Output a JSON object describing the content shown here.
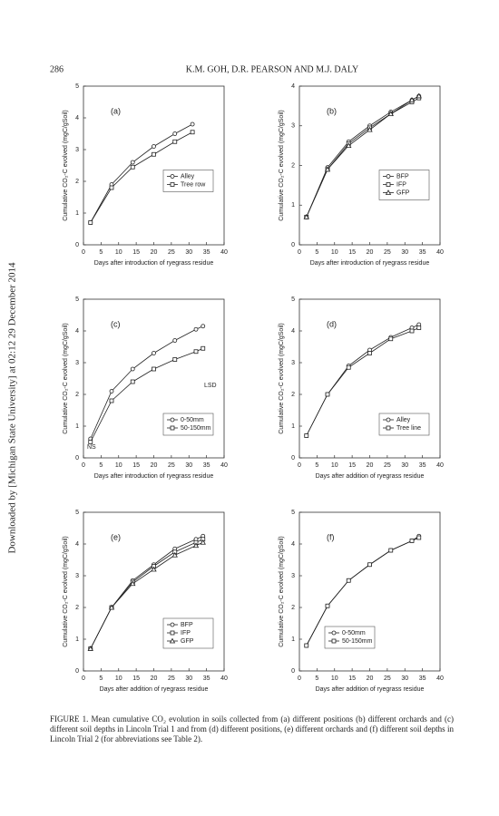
{
  "header": {
    "page_number": "286",
    "authors": "K.M. GOH, D.R. PEARSON AND M.J. DALY"
  },
  "side_note": "Downloaded by [Michigan State University] at 02:12 29 December 2014",
  "chart_data": [
    {
      "type": "line",
      "panel": "(a)",
      "y_label": "Cumulative CO₂-C evolved (mgC/gSoil)",
      "x_label": "Days after introduction of ryegrass residue",
      "x": [
        2,
        8,
        14,
        20,
        26,
        31
      ],
      "xlim": [
        0,
        40
      ],
      "xticks": [
        0,
        5,
        10,
        15,
        20,
        25,
        30,
        35,
        40
      ],
      "ylim": [
        0,
        5
      ],
      "yticks": [
        0,
        1,
        2,
        3,
        4,
        5
      ],
      "legend": "center right",
      "series": [
        {
          "name": "Alley",
          "color": "#222222",
          "values": [
            0.7,
            1.9,
            2.6,
            3.1,
            3.5,
            3.8
          ]
        },
        {
          "name": "Tree row",
          "color": "#222222",
          "values": [
            0.7,
            1.8,
            2.45,
            2.85,
            3.25,
            3.55
          ]
        }
      ]
    },
    {
      "type": "line",
      "panel": "(b)",
      "y_label": "Cumulative CO₂-C evolved (mgC/gSoil)",
      "x_label": "Days after introduction of ryegrass residue",
      "x": [
        2,
        8,
        14,
        20,
        26,
        32,
        34
      ],
      "xlim": [
        0,
        40
      ],
      "xticks": [
        0,
        5,
        10,
        15,
        20,
        25,
        30,
        35,
        40
      ],
      "ylim": [
        0,
        4
      ],
      "yticks": [
        0,
        1,
        2,
        3,
        4
      ],
      "legend": "center right",
      "series": [
        {
          "name": "BFP",
          "color": "#222222",
          "values": [
            0.7,
            1.95,
            2.6,
            3.0,
            3.35,
            3.65,
            3.75
          ]
        },
        {
          "name": "IFP",
          "color": "#222222",
          "values": [
            0.7,
            1.9,
            2.55,
            2.95,
            3.3,
            3.6,
            3.7
          ]
        },
        {
          "name": "GFP",
          "color": "#222222",
          "values": [
            0.7,
            1.9,
            2.5,
            2.9,
            3.3,
            3.65,
            3.75
          ]
        }
      ]
    },
    {
      "type": "line",
      "panel": "(c)",
      "y_label": "Cumulative CO₂-C evolved (mgC/gSoil)",
      "x_label": "Days after introduction of ryegrass residue",
      "x": [
        2,
        8,
        14,
        20,
        26,
        32,
        34
      ],
      "xlim": [
        0,
        40
      ],
      "xticks": [
        0,
        5,
        10,
        15,
        20,
        25,
        30,
        35,
        40
      ],
      "ylim": [
        0,
        5
      ],
      "yticks": [
        0,
        1,
        2,
        3,
        4,
        5
      ],
      "legend": "lower right",
      "annotations": [
        "NS",
        "LSD"
      ],
      "series": [
        {
          "name": "0-50mm",
          "color": "#222222",
          "values": [
            0.6,
            2.1,
            2.8,
            3.3,
            3.7,
            4.05,
            4.15
          ]
        },
        {
          "name": "50-150mm",
          "color": "#222222",
          "values": [
            0.5,
            1.8,
            2.4,
            2.8,
            3.1,
            3.35,
            3.45
          ]
        }
      ]
    },
    {
      "type": "line",
      "panel": "(d)",
      "y_label": "Cumulative CO₂-C evolved (mgC/gSoil)",
      "x_label": "Days after addition of ryegrass residue",
      "x": [
        2,
        8,
        14,
        20,
        26,
        32,
        34
      ],
      "xlim": [
        0,
        40
      ],
      "xticks": [
        0,
        5,
        10,
        15,
        20,
        25,
        30,
        35,
        40
      ],
      "ylim": [
        0,
        5
      ],
      "yticks": [
        0,
        1,
        2,
        3,
        4,
        5
      ],
      "legend": "lower right",
      "series": [
        {
          "name": "Alley",
          "color": "#222222",
          "values": [
            0.7,
            2.0,
            2.9,
            3.4,
            3.8,
            4.1,
            4.2
          ]
        },
        {
          "name": "Tree line",
          "color": "#222222",
          "values": [
            0.7,
            2.0,
            2.85,
            3.3,
            3.75,
            4.0,
            4.1
          ]
        }
      ]
    },
    {
      "type": "line",
      "panel": "(e)",
      "y_label": "Cumulative CO₂-C evolved (mgC/gSoil)",
      "x_label": "Days after addition of ryegrass residue",
      "x": [
        2,
        8,
        14,
        20,
        26,
        32,
        34
      ],
      "xlim": [
        0,
        40
      ],
      "xticks": [
        0,
        5,
        10,
        15,
        20,
        25,
        30,
        35,
        40
      ],
      "ylim": [
        0,
        5
      ],
      "yticks": [
        0,
        1,
        2,
        3,
        4,
        5
      ],
      "legend": "lower right",
      "series": [
        {
          "name": "BFP",
          "color": "#222222",
          "values": [
            0.7,
            2.0,
            2.85,
            3.35,
            3.85,
            4.15,
            4.25
          ]
        },
        {
          "name": "IFP",
          "color": "#222222",
          "values": [
            0.7,
            2.0,
            2.8,
            3.3,
            3.75,
            4.05,
            4.15
          ]
        },
        {
          "name": "GFP",
          "color": "#222222",
          "values": [
            0.7,
            2.0,
            2.75,
            3.2,
            3.65,
            3.95,
            4.05
          ]
        }
      ]
    },
    {
      "type": "line",
      "panel": "(f)",
      "y_label": "Cumulative CO₂-C evolved (mgC/gSoil)",
      "x_label": "Days after addition of ryegrass residue",
      "x": [
        2,
        8,
        14,
        20,
        26,
        32,
        34
      ],
      "xlim": [
        0,
        40
      ],
      "xticks": [
        0,
        5,
        10,
        15,
        20,
        25,
        30,
        35,
        40
      ],
      "ylim": [
        0,
        5
      ],
      "yticks": [
        0,
        1,
        2,
        3,
        4,
        5
      ],
      "legend": "lower left",
      "series": [
        {
          "name": "0-50mm",
          "color": "#222222",
          "values": [
            0.8,
            2.05,
            2.85,
            3.35,
            3.8,
            4.1,
            4.25
          ]
        },
        {
          "name": "50-150mm",
          "color": "#222222",
          "values": [
            0.8,
            2.05,
            2.85,
            3.35,
            3.8,
            4.1,
            4.2
          ]
        }
      ]
    }
  ],
  "caption": "FIGURE 1. Mean cumulative CO₂ evolution in soils collected from (a) different positions (b) different orchards and (c) different soil depths in Lincoln Trial 1 and from (d) different positions, (e) different orchards and (f) different soil depths in Lincoln Trial 2 (for abbreviations see Table 2)."
}
